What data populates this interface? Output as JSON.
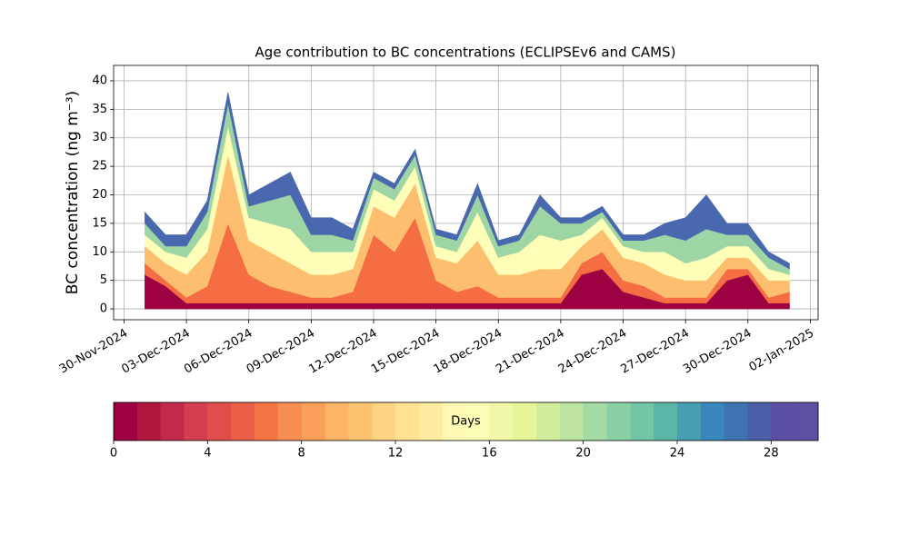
{
  "chart_data": {
    "type": "stacked_area",
    "title": "Age contribution to BC concentrations (ECLIPSEv6 and CAMS)",
    "y_label": "BC concentration (ng m⁻³)",
    "x": [
      "2024-12-01",
      "2024-12-02",
      "2024-12-03",
      "2024-12-04",
      "2024-12-05",
      "2024-12-06",
      "2024-12-07",
      "2024-12-08",
      "2024-12-09",
      "2024-12-10",
      "2024-12-11",
      "2024-12-12",
      "2024-12-13",
      "2024-12-14",
      "2024-12-15",
      "2024-12-16",
      "2024-12-17",
      "2024-12-18",
      "2024-12-19",
      "2024-12-20",
      "2024-12-21",
      "2024-12-22",
      "2024-12-23",
      "2024-12-24",
      "2024-12-25",
      "2024-12-26",
      "2024-12-27",
      "2024-12-28",
      "2024-12-29",
      "2024-12-30",
      "2024-12-31",
      "2025-01-01"
    ],
    "series": [
      {
        "color": "#9e0142",
        "values": [
          6,
          4,
          1,
          1,
          1,
          1,
          1,
          1,
          1,
          1,
          1,
          1,
          1,
          1,
          1,
          1,
          1,
          1,
          1,
          1,
          1,
          6,
          7,
          3,
          2,
          1,
          1,
          1,
          5,
          6,
          1,
          1
        ]
      },
      {
        "color": "#f46d43",
        "values": [
          2,
          1,
          1,
          3,
          14,
          5,
          3,
          2,
          1,
          1,
          2,
          12,
          9,
          15,
          4,
          2,
          3,
          1,
          1,
          1,
          1,
          2,
          3,
          2,
          2,
          1,
          1,
          1,
          2,
          1,
          1,
          2
        ]
      },
      {
        "color": "#fdbf6f",
        "values": [
          3,
          3,
          4,
          6,
          12,
          6,
          6,
          5,
          4,
          4,
          4,
          5,
          6,
          6,
          4,
          5,
          8,
          4,
          4,
          5,
          5,
          3,
          4,
          4,
          4,
          4,
          3,
          3,
          2,
          2,
          3,
          2
        ]
      },
      {
        "color": "#fefeb8",
        "values": [
          2,
          2,
          3,
          4,
          5,
          4,
          5,
          6,
          4,
          4,
          3,
          3,
          3,
          3,
          2,
          2,
          5,
          3,
          4,
          6,
          5,
          2,
          2,
          2,
          2,
          4,
          3,
          4,
          2,
          2,
          2,
          1
        ]
      },
      {
        "color": "#9dd6a4",
        "values": [
          2,
          1,
          2,
          3,
          4,
          2,
          4,
          6,
          3,
          3,
          2,
          2,
          2,
          2,
          2,
          2,
          3,
          2,
          2,
          5,
          3,
          2,
          1,
          1,
          2,
          3,
          4,
          5,
          2,
          2,
          2,
          1
        ]
      },
      {
        "color": "#4a68ad",
        "values": [
          2,
          2,
          2,
          2,
          2,
          2,
          3,
          4,
          3,
          3,
          2,
          1,
          1,
          1,
          1,
          1,
          2,
          1,
          1,
          2,
          1,
          1,
          1,
          1,
          1,
          2,
          4,
          6,
          2,
          2,
          1,
          1
        ]
      }
    ],
    "xlim": [
      "2024-11-29T12:00:00Z",
      "2025-01-02T09:00:00Z"
    ],
    "xticks": [
      {
        "value": "2024-11-30",
        "label": "30-Nov-2024"
      },
      {
        "value": "2024-12-03",
        "label": "03-Dec-2024"
      },
      {
        "value": "2024-12-06",
        "label": "06-Dec-2024"
      },
      {
        "value": "2024-12-09",
        "label": "09-Dec-2024"
      },
      {
        "value": "2024-12-12",
        "label": "12-Dec-2024"
      },
      {
        "value": "2024-12-15",
        "label": "15-Dec-2024"
      },
      {
        "value": "2024-12-18",
        "label": "18-Dec-2024"
      },
      {
        "value": "2024-12-21",
        "label": "21-Dec-2024"
      },
      {
        "value": "2024-12-24",
        "label": "24-Dec-2024"
      },
      {
        "value": "2024-12-27",
        "label": "27-Dec-2024"
      },
      {
        "value": "2024-12-30",
        "label": "30-Dec-2024"
      },
      {
        "value": "2025-01-02",
        "label": "02-Jan-2025"
      }
    ],
    "ylim": [
      -1.9,
      42.7
    ],
    "yticks": [
      0,
      5,
      10,
      15,
      20,
      25,
      30,
      35,
      40
    ],
    "grid": true,
    "colorbar": {
      "label": "Days",
      "lim": [
        0,
        30
      ],
      "ticks": [
        0,
        4,
        8,
        12,
        16,
        20,
        24,
        28
      ],
      "colors": [
        "#9e0142",
        "#b0173f",
        "#c22a4b",
        "#d53e4f",
        "#e14d4a",
        "#eb5f47",
        "#f57547",
        "#f88d52",
        "#fba05b",
        "#fdb466",
        "#fdc371",
        "#fdd481",
        "#fee191",
        "#feeda1",
        "#fff8b5",
        "#fbfdb7",
        "#f1f9a9",
        "#e6f598",
        "#d0ec9c",
        "#bce4a0",
        "#a4daa4",
        "#89d0a4",
        "#72c5a5",
        "#5cb7a9",
        "#489eb3",
        "#3987bc",
        "#3f72b1",
        "#4a5fa8",
        "#5a4fa2",
        "#5e4fa2"
      ]
    }
  }
}
